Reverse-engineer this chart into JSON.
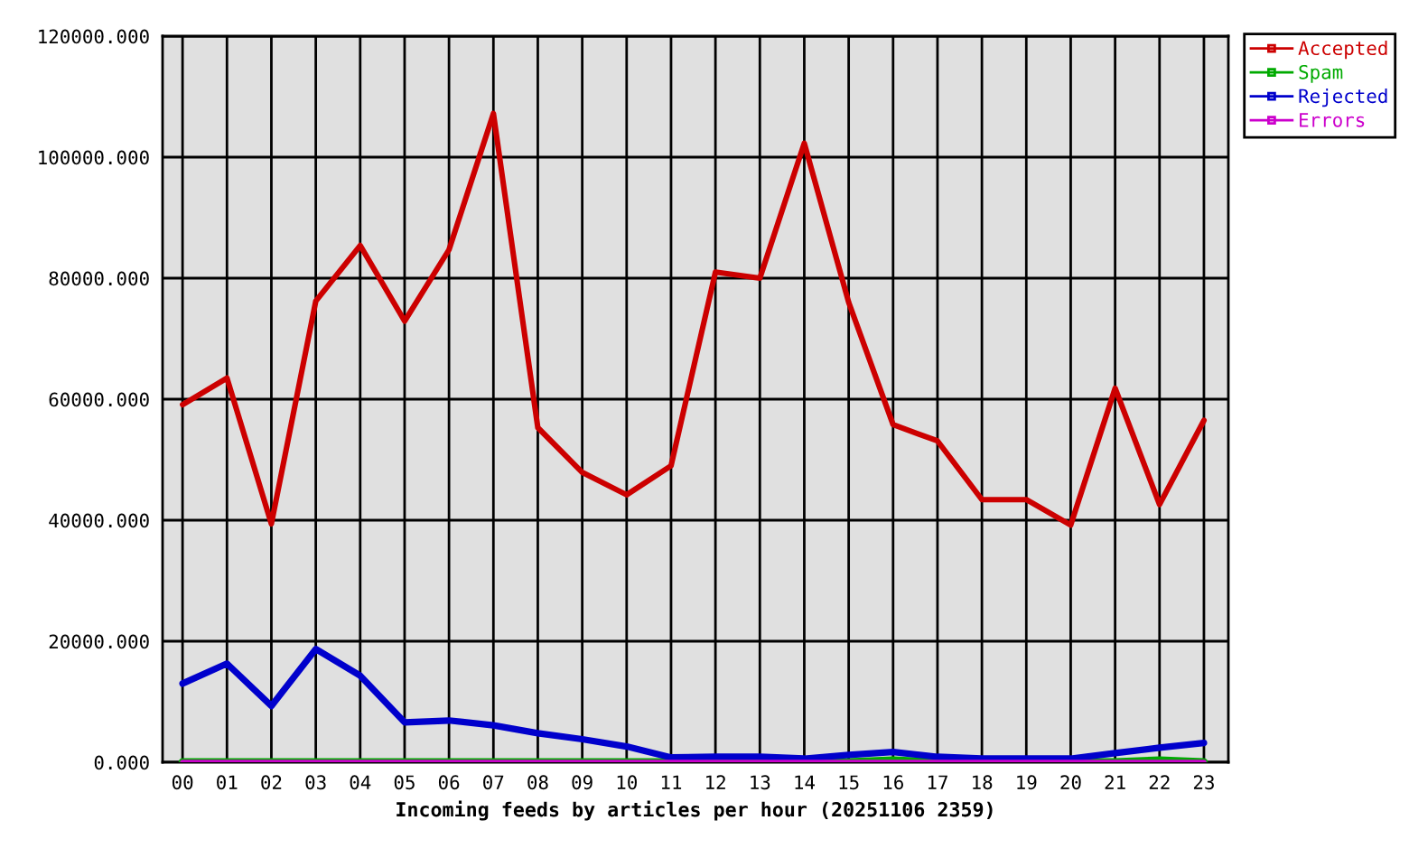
{
  "chart_data": {
    "type": "line",
    "xlabel": "Incoming feeds by articles per hour (20251106 2359)",
    "categories": [
      "00",
      "01",
      "02",
      "03",
      "04",
      "05",
      "06",
      "07",
      "08",
      "09",
      "10",
      "11",
      "12",
      "13",
      "14",
      "15",
      "16",
      "17",
      "18",
      "19",
      "20",
      "21",
      "22",
      "23"
    ],
    "series": [
      {
        "name": "Accepted",
        "color": "#cc0000",
        "values": [
          59100,
          63500,
          39400,
          76200,
          85400,
          72900,
          84700,
          107200,
          55300,
          47900,
          44200,
          49000,
          81000,
          80000,
          102300,
          76000,
          55800,
          53100,
          43400,
          43400,
          39200,
          61800,
          42600,
          56500
        ]
      },
      {
        "name": "Spam",
        "color": "#00aa00",
        "values": [
          0,
          0,
          0,
          0,
          0,
          0,
          0,
          0,
          0,
          0,
          0,
          0,
          0,
          0,
          0,
          0,
          300,
          0,
          0,
          0,
          0,
          0,
          300,
          0
        ]
      },
      {
        "name": "Rejected",
        "color": "#0000cc",
        "values": [
          13000,
          16300,
          9300,
          18700,
          14300,
          6600,
          6900,
          6100,
          4800,
          3800,
          2600,
          800,
          900,
          900,
          600,
          1200,
          1700,
          900,
          600,
          600,
          600,
          1500,
          2400,
          3200
        ]
      },
      {
        "name": "Errors",
        "color": "#cc00cc",
        "values": [
          0,
          0,
          0,
          0,
          0,
          0,
          0,
          0,
          0,
          0,
          0,
          0,
          0,
          0,
          0,
          0,
          0,
          0,
          0,
          0,
          0,
          0,
          0,
          0
        ]
      }
    ],
    "ylim": [
      0,
      120000
    ],
    "yticks": [
      {
        "value": 0,
        "label": "0.000"
      },
      {
        "value": 20000,
        "label": "20000.000"
      },
      {
        "value": 40000,
        "label": "40000.000"
      },
      {
        "value": 60000,
        "label": "60000.000"
      },
      {
        "value": 80000,
        "label": "80000.000"
      },
      {
        "value": 100000,
        "label": "100000.000"
      },
      {
        "value": 120000,
        "label": "120000.000"
      }
    ],
    "grid": true,
    "legend": "top right",
    "line_style": "solid"
  }
}
